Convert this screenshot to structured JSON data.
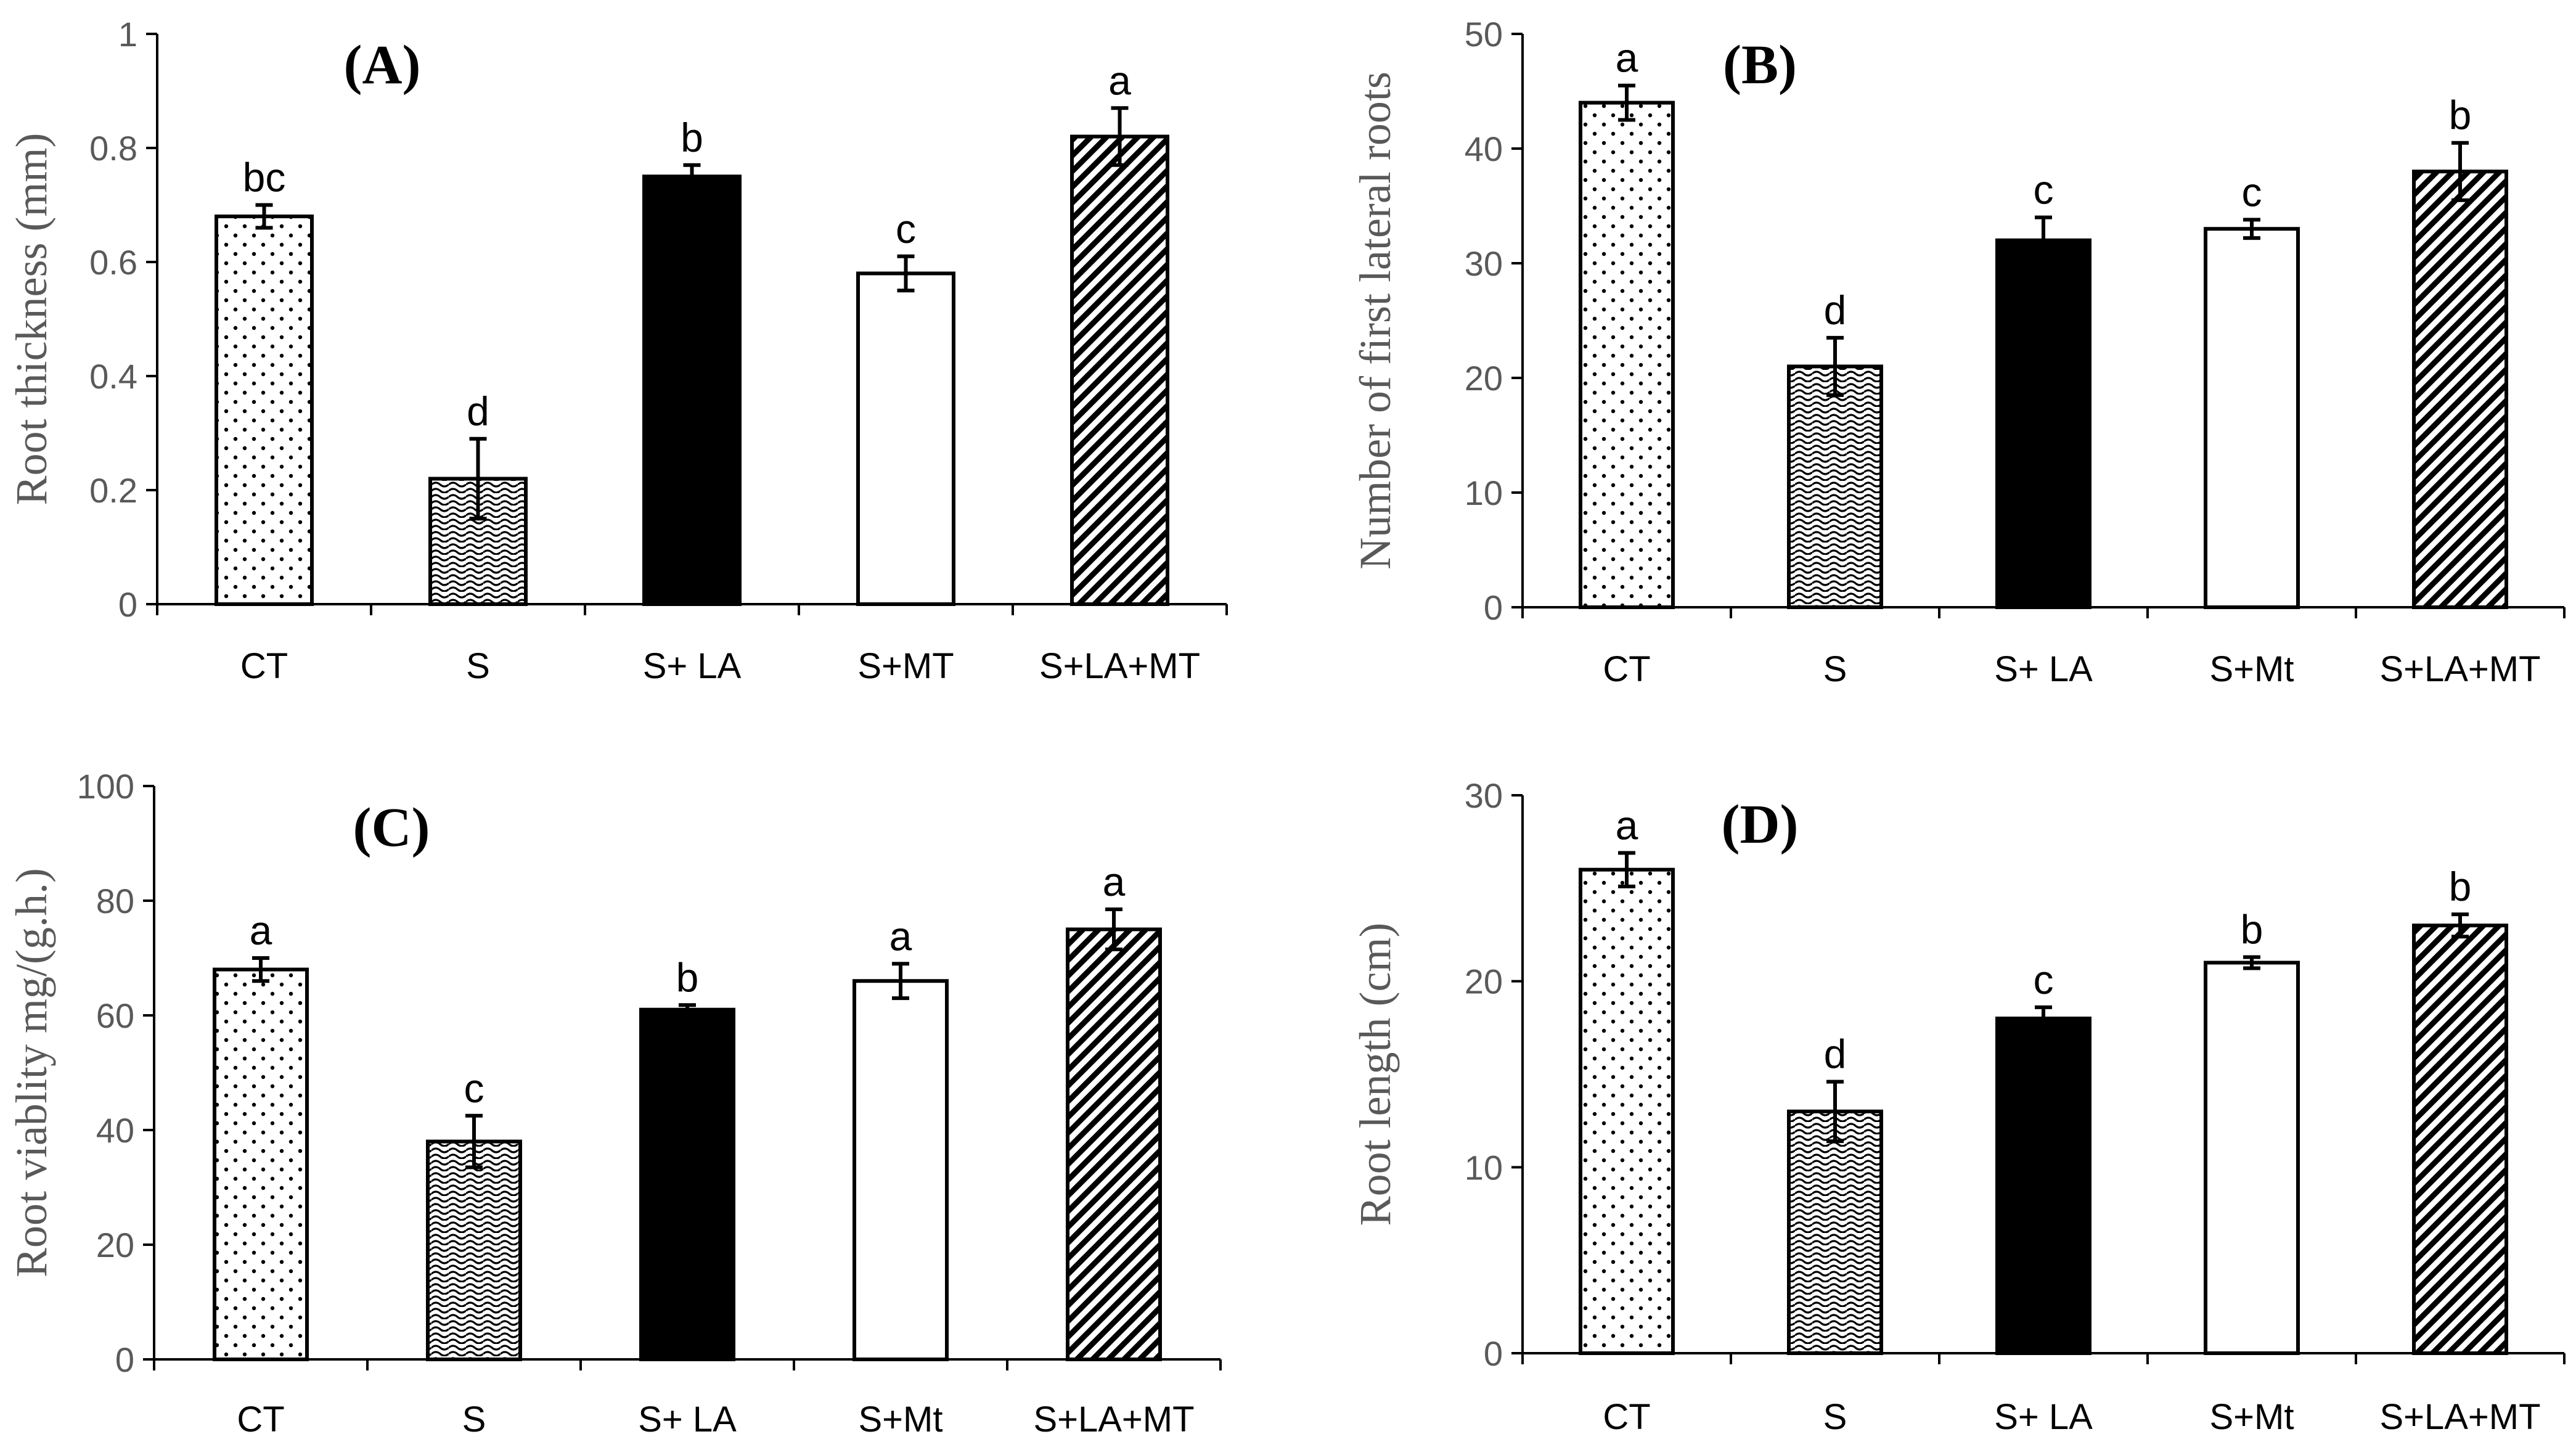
{
  "chart_data": [
    {
      "type": "bar",
      "panel": "(A)",
      "ylabel": "Root thickness (mm)",
      "ylim": [
        0,
        1
      ],
      "yticks": [
        0,
        0.2,
        0.4,
        0.6,
        0.8,
        1
      ],
      "ytick_labels": [
        "0",
        "0.2",
        "0.4",
        "0.6",
        "0.8",
        "1"
      ],
      "categories": [
        "CT",
        "S",
        "S+ LA",
        "S+MT",
        "S+LA+MT"
      ],
      "values": [
        0.68,
        0.22,
        0.75,
        0.58,
        0.82
      ],
      "errors": [
        0.02,
        0.07,
        0.02,
        0.03,
        0.05
      ],
      "significance": [
        "bc",
        "d",
        "b",
        "c",
        "a"
      ],
      "patterns": [
        "dots",
        "waves",
        "solid",
        "white",
        "diagonal"
      ]
    },
    {
      "type": "bar",
      "panel": "(B)",
      "ylabel": "Number of first lateral roots",
      "ylim": [
        0,
        50
      ],
      "yticks": [
        0,
        10,
        20,
        30,
        40,
        50
      ],
      "ytick_labels": [
        "0",
        "10",
        "20",
        "30",
        "40",
        "50"
      ],
      "categories": [
        "CT",
        "S",
        "S+ LA",
        "S+Mt",
        "S+LA+MT"
      ],
      "values": [
        44,
        21,
        32,
        33,
        38
      ],
      "errors": [
        1.5,
        2.5,
        2.0,
        0.8,
        2.5
      ],
      "significance": [
        "a",
        "d",
        "c",
        "c",
        "b"
      ],
      "patterns": [
        "dots",
        "waves",
        "solid",
        "white",
        "diagonal"
      ]
    },
    {
      "type": "bar",
      "panel": "(C)",
      "ylabel": "Root viablity  mg/(g.h.)",
      "ylim": [
        0,
        100
      ],
      "yticks": [
        0,
        20,
        40,
        60,
        80,
        100
      ],
      "ytick_labels": [
        "0",
        "20",
        "40",
        "60",
        "80",
        "100"
      ],
      "categories": [
        "CT",
        "S",
        "S+ LA",
        "S+Mt",
        "S+LA+MT"
      ],
      "values": [
        68,
        38,
        61,
        66,
        75
      ],
      "errors": [
        2,
        4.5,
        0.8,
        3,
        3.5
      ],
      "significance": [
        "a",
        "c",
        "b",
        "a",
        "a"
      ],
      "patterns": [
        "dots",
        "waves",
        "solid",
        "white",
        "diagonal"
      ]
    },
    {
      "type": "bar",
      "panel": "(D)",
      "ylabel": "Root length (cm)",
      "ylim": [
        0,
        30
      ],
      "yticks": [
        0,
        10,
        20,
        30
      ],
      "ytick_labels": [
        "0",
        "10",
        "20",
        "30"
      ],
      "categories": [
        "CT",
        "S",
        "S+ LA",
        "S+Mt",
        "S+LA+MT"
      ],
      "values": [
        26,
        13,
        18,
        21,
        23
      ],
      "errors": [
        0.9,
        1.6,
        0.6,
        0.3,
        0.6
      ],
      "significance": [
        "a",
        "d",
        "c",
        "b",
        "b"
      ],
      "patterns": [
        "dots",
        "waves",
        "solid",
        "white",
        "diagonal"
      ]
    }
  ]
}
